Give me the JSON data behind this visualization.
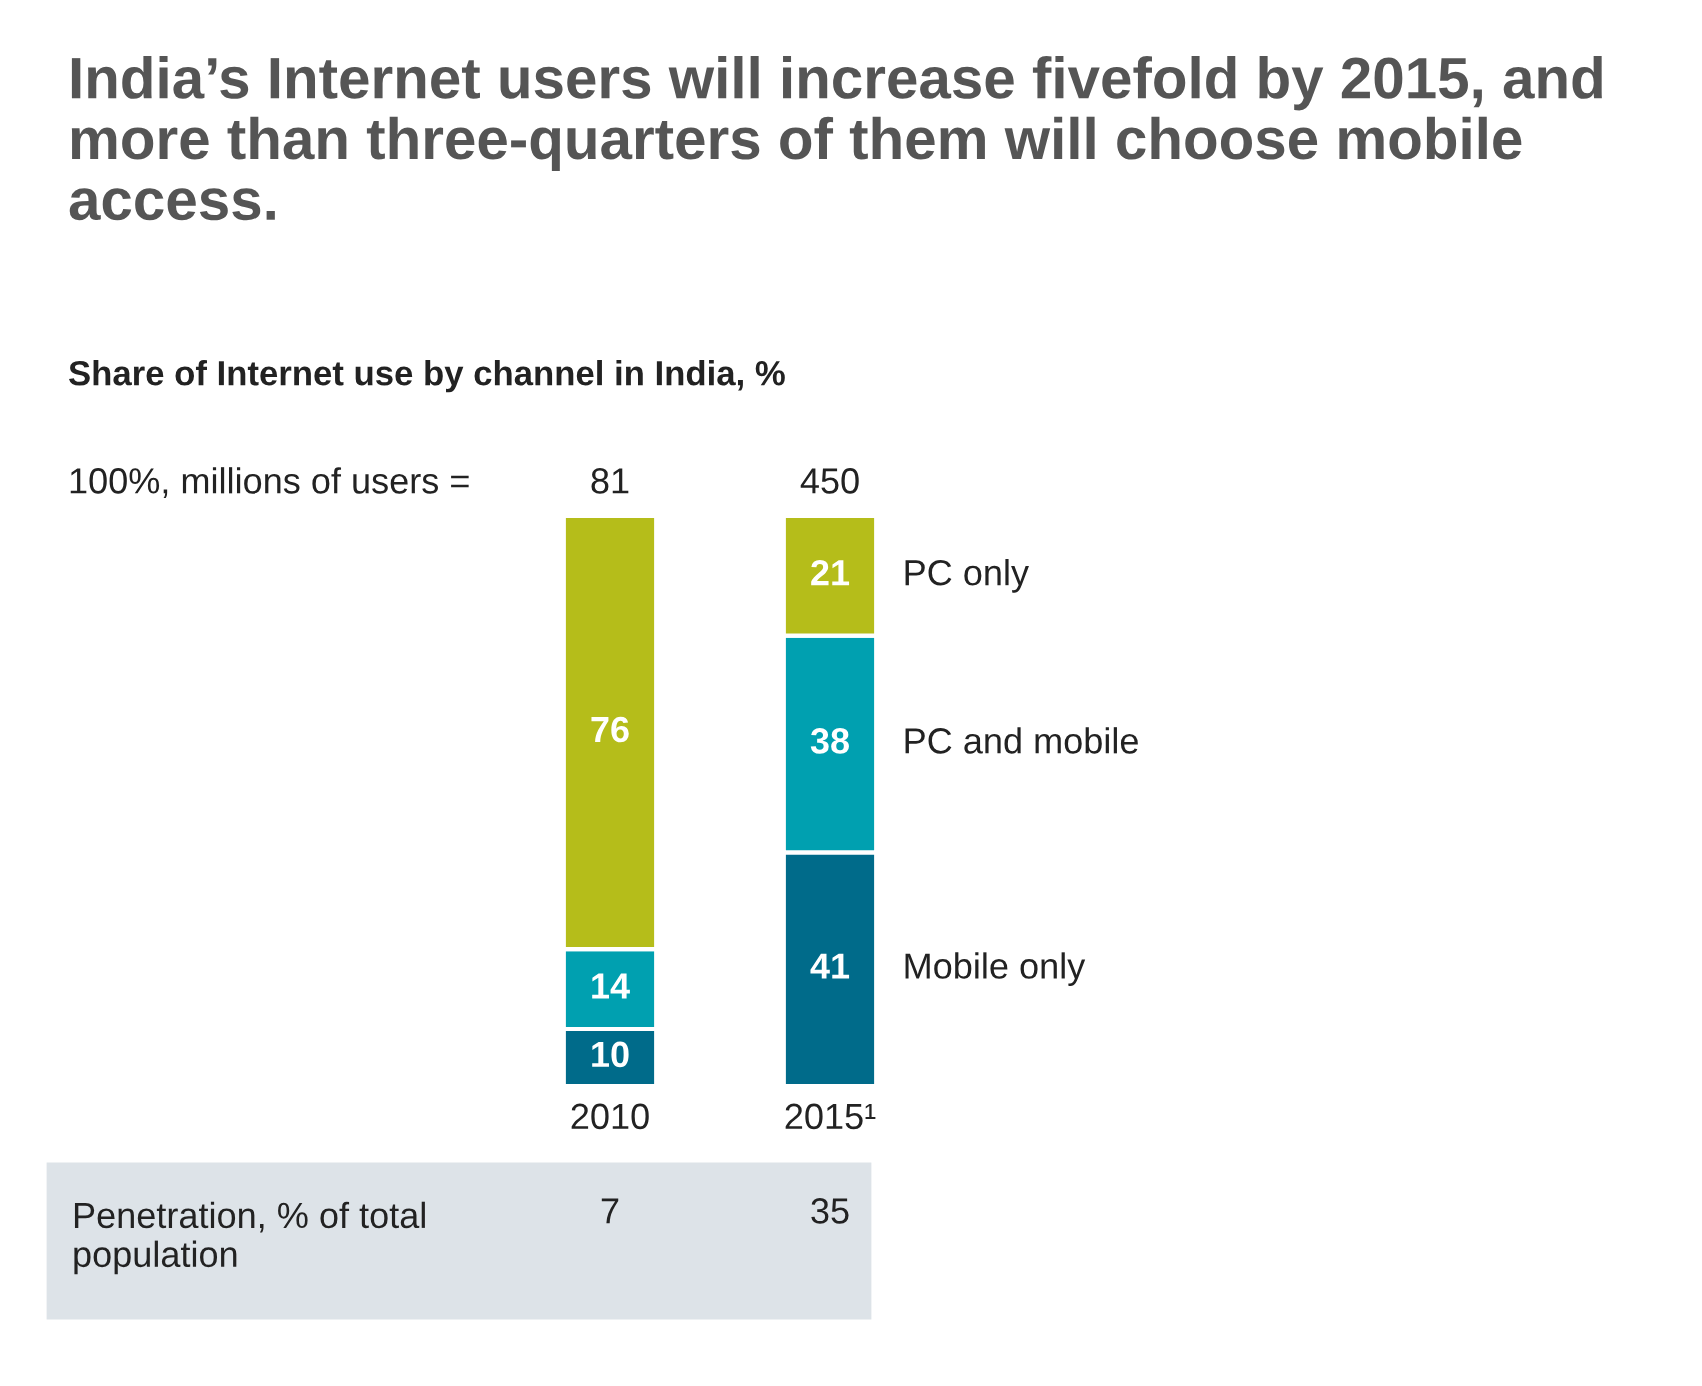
{
  "chart_data": {
    "type": "bar",
    "stacked": true,
    "data_labels": true,
    "legend": false,
    "tick_labels": "x",
    "title": "India’s Internet users will increase fivefold by 2015, and more than three-quarters of them will choose mobile access.",
    "subtitle": "Share of Internet use by channel in India, %",
    "categories": [
      "2010",
      "2015¹"
    ],
    "series": [
      {
        "name": "Mobile only",
        "color": "#006b8a",
        "values": [
          10,
          41
        ]
      },
      {
        "name": "PC and mobile",
        "color": "#00a0b0",
        "values": [
          14,
          38
        ]
      },
      {
        "name": "PC only",
        "color": "#b5bd1a",
        "values": [
          76,
          21
        ]
      }
    ],
    "annotations": [
      "100%, millions of users =",
      "81",
      "450",
      "Penetration, % of total population",
      "7",
      "35"
    ]
  }
}
